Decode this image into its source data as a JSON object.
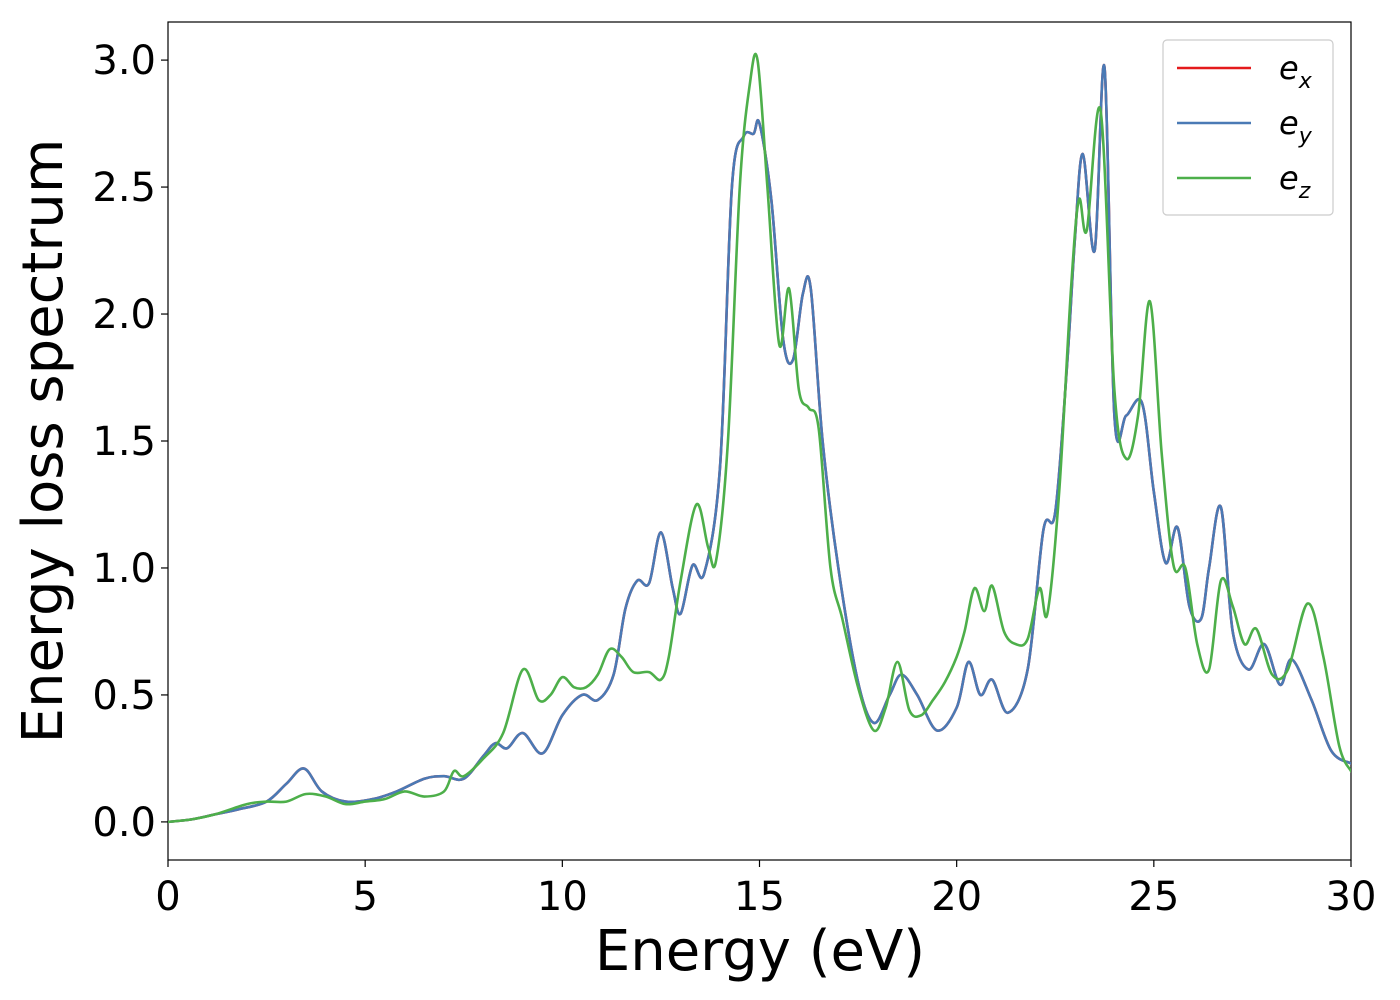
{
  "chart_data": {
    "type": "line",
    "xlabel": "Energy (eV)",
    "ylabel": "Energy loss spectrum",
    "xlim": [
      0,
      30
    ],
    "ylim": [
      -0.15,
      3.15
    ],
    "xticks": [
      0,
      5,
      10,
      15,
      20,
      25,
      30
    ],
    "yticks": [
      0.0,
      0.5,
      1.0,
      1.5,
      2.0,
      2.5,
      3.0
    ],
    "xtick_labels": [
      "0",
      "5",
      "10",
      "15",
      "20",
      "25",
      "30"
    ],
    "ytick_labels": [
      "0.0",
      "0.5",
      "1.0",
      "1.5",
      "2.0",
      "2.5",
      "3.0"
    ],
    "grid": false,
    "legend_position": "top-right",
    "series": [
      {
        "name": "e_x",
        "label_main": "e",
        "label_sub": "x",
        "color": "#e41a1c",
        "x": [
          0,
          0.6,
          1.2,
          1.8,
          2.5,
          3.0,
          3.45,
          3.9,
          4.5,
          5.2,
          5.8,
          6.5,
          7.0,
          7.5,
          8.0,
          8.3,
          8.6,
          9.0,
          9.5,
          10.0,
          10.5,
          10.9,
          11.3,
          11.6,
          11.9,
          12.2,
          12.5,
          12.8,
          13.0,
          13.3,
          13.6,
          14.0,
          14.3,
          14.6,
          14.85,
          15.0,
          15.3,
          15.6,
          15.85,
          16.1,
          16.3,
          16.6,
          17.0,
          17.5,
          17.9,
          18.3,
          18.6,
          19.0,
          19.5,
          20.0,
          20.3,
          20.6,
          20.9,
          21.3,
          21.8,
          22.2,
          22.5,
          22.8,
          23.0,
          23.2,
          23.5,
          23.75,
          24.0,
          24.3,
          24.7,
          25.0,
          25.3,
          25.6,
          25.9,
          26.2,
          26.4,
          26.7,
          27.0,
          27.4,
          27.8,
          28.2,
          28.5,
          29.0,
          29.5,
          30.0
        ],
        "y": [
          0.0,
          0.01,
          0.03,
          0.05,
          0.08,
          0.15,
          0.21,
          0.12,
          0.08,
          0.09,
          0.12,
          0.17,
          0.18,
          0.17,
          0.26,
          0.31,
          0.29,
          0.35,
          0.27,
          0.42,
          0.5,
          0.48,
          0.58,
          0.84,
          0.95,
          0.94,
          1.14,
          0.92,
          0.82,
          1.01,
          0.98,
          1.4,
          2.5,
          2.7,
          2.71,
          2.75,
          2.45,
          1.9,
          1.82,
          2.08,
          2.1,
          1.5,
          1.0,
          0.55,
          0.39,
          0.5,
          0.58,
          0.5,
          0.36,
          0.45,
          0.63,
          0.5,
          0.56,
          0.43,
          0.6,
          1.15,
          1.22,
          1.8,
          2.3,
          2.63,
          2.25,
          2.97,
          1.6,
          1.6,
          1.65,
          1.3,
          1.02,
          1.16,
          0.85,
          0.8,
          1.0,
          1.24,
          0.75,
          0.6,
          0.7,
          0.54,
          0.64,
          0.48,
          0.28,
          0.23
        ]
      },
      {
        "name": "e_y",
        "label_main": "e",
        "label_sub": "y",
        "color": "#4a7ab5",
        "x": [
          0,
          0.6,
          1.2,
          1.8,
          2.5,
          3.0,
          3.45,
          3.9,
          4.5,
          5.2,
          5.8,
          6.5,
          7.0,
          7.5,
          8.0,
          8.3,
          8.6,
          9.0,
          9.5,
          10.0,
          10.5,
          10.9,
          11.3,
          11.6,
          11.9,
          12.2,
          12.5,
          12.8,
          13.0,
          13.3,
          13.6,
          14.0,
          14.3,
          14.6,
          14.85,
          15.0,
          15.3,
          15.6,
          15.85,
          16.1,
          16.3,
          16.6,
          17.0,
          17.5,
          17.9,
          18.3,
          18.6,
          19.0,
          19.5,
          20.0,
          20.3,
          20.6,
          20.9,
          21.3,
          21.8,
          22.2,
          22.5,
          22.8,
          23.0,
          23.2,
          23.5,
          23.75,
          24.0,
          24.3,
          24.7,
          25.0,
          25.3,
          25.6,
          25.9,
          26.2,
          26.4,
          26.7,
          27.0,
          27.4,
          27.8,
          28.2,
          28.5,
          29.0,
          29.5,
          30.0
        ],
        "y": [
          0.0,
          0.01,
          0.03,
          0.05,
          0.08,
          0.15,
          0.21,
          0.12,
          0.08,
          0.09,
          0.12,
          0.17,
          0.18,
          0.17,
          0.26,
          0.31,
          0.29,
          0.35,
          0.27,
          0.42,
          0.5,
          0.48,
          0.58,
          0.84,
          0.95,
          0.94,
          1.14,
          0.92,
          0.82,
          1.01,
          0.98,
          1.4,
          2.5,
          2.7,
          2.71,
          2.75,
          2.45,
          1.9,
          1.82,
          2.08,
          2.1,
          1.5,
          1.0,
          0.55,
          0.39,
          0.5,
          0.58,
          0.5,
          0.36,
          0.45,
          0.63,
          0.5,
          0.56,
          0.43,
          0.6,
          1.15,
          1.22,
          1.8,
          2.3,
          2.63,
          2.25,
          2.97,
          1.6,
          1.6,
          1.65,
          1.3,
          1.02,
          1.16,
          0.85,
          0.8,
          1.0,
          1.24,
          0.75,
          0.6,
          0.7,
          0.54,
          0.64,
          0.48,
          0.28,
          0.23
        ]
      },
      {
        "name": "e_z",
        "label_main": "e",
        "label_sub": "z",
        "color": "#4daf4a",
        "x": [
          0,
          0.6,
          1.2,
          2.0,
          2.5,
          3.0,
          3.5,
          4.0,
          4.5,
          5.0,
          5.5,
          6.0,
          6.5,
          7.0,
          7.25,
          7.5,
          8.0,
          8.5,
          9.0,
          9.4,
          9.7,
          10.0,
          10.3,
          10.6,
          10.9,
          11.2,
          11.5,
          11.8,
          12.2,
          12.5,
          12.7,
          13.0,
          13.4,
          13.7,
          13.9,
          14.2,
          14.5,
          14.75,
          14.95,
          15.2,
          15.5,
          15.75,
          16.0,
          16.25,
          16.5,
          16.8,
          17.1,
          17.5,
          17.9,
          18.2,
          18.5,
          18.8,
          19.1,
          19.4,
          19.7,
          20.0,
          20.2,
          20.45,
          20.7,
          20.9,
          21.2,
          21.5,
          21.8,
          22.1,
          22.3,
          22.6,
          22.9,
          23.1,
          23.3,
          23.65,
          24.0,
          24.3,
          24.6,
          24.9,
          25.2,
          25.5,
          25.8,
          26.1,
          26.4,
          26.7,
          27.0,
          27.3,
          27.6,
          28.0,
          28.4,
          28.9,
          29.3,
          29.7,
          30.0
        ],
        "y": [
          0.0,
          0.01,
          0.03,
          0.07,
          0.08,
          0.08,
          0.11,
          0.1,
          0.07,
          0.08,
          0.09,
          0.12,
          0.1,
          0.12,
          0.2,
          0.18,
          0.25,
          0.35,
          0.6,
          0.48,
          0.5,
          0.57,
          0.53,
          0.53,
          0.58,
          0.68,
          0.65,
          0.59,
          0.59,
          0.56,
          0.65,
          0.95,
          1.25,
          1.08,
          1.03,
          1.5,
          2.5,
          2.9,
          3.0,
          2.5,
          1.88,
          2.1,
          1.7,
          1.63,
          1.55,
          1.0,
          0.8,
          0.53,
          0.36,
          0.45,
          0.63,
          0.44,
          0.42,
          0.48,
          0.55,
          0.65,
          0.75,
          0.92,
          0.83,
          0.93,
          0.75,
          0.7,
          0.72,
          0.92,
          0.82,
          1.3,
          2.1,
          2.45,
          2.33,
          2.8,
          1.7,
          1.43,
          1.6,
          2.05,
          1.45,
          1.01,
          1.0,
          0.7,
          0.6,
          0.95,
          0.85,
          0.7,
          0.76,
          0.58,
          0.6,
          0.86,
          0.65,
          0.3,
          0.2
        ]
      }
    ]
  }
}
